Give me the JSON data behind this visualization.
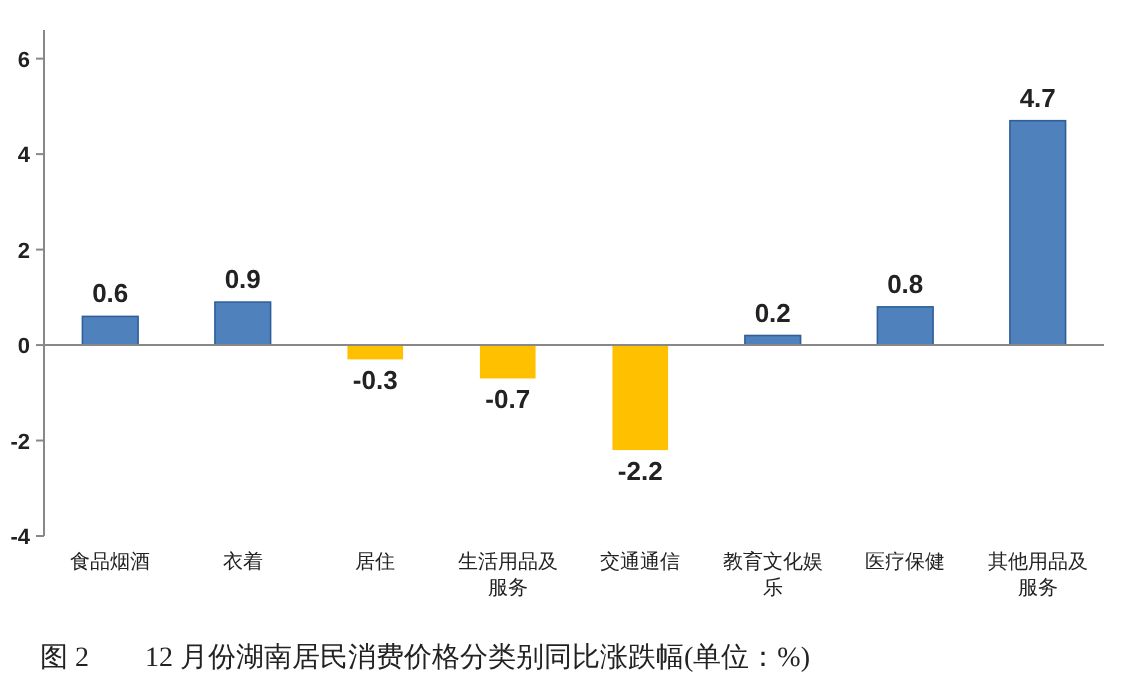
{
  "chart_data": {
    "type": "bar",
    "title": "图 2　　12 月份湖南居民消费价格分类别同比涨跌幅(单位：%)",
    "categories": [
      "食品烟酒",
      "衣着",
      "居住",
      "生活用品及服务",
      "交通通信",
      "教育文化娱乐",
      "医疗保健",
      "其他用品及服务"
    ],
    "values": [
      0.6,
      0.9,
      -0.3,
      -0.7,
      -2.2,
      0.2,
      0.8,
      4.7
    ],
    "colors": [
      "#4f81bd",
      "#4f81bd",
      "#ffc000",
      "#ffc000",
      "#ffc000",
      "#4f81bd",
      "#4f81bd",
      "#4f81bd"
    ],
    "ylim": [
      -4,
      6.6
    ],
    "yticks": [
      -4,
      -2,
      0,
      2,
      4,
      6
    ],
    "data_labels": true
  }
}
